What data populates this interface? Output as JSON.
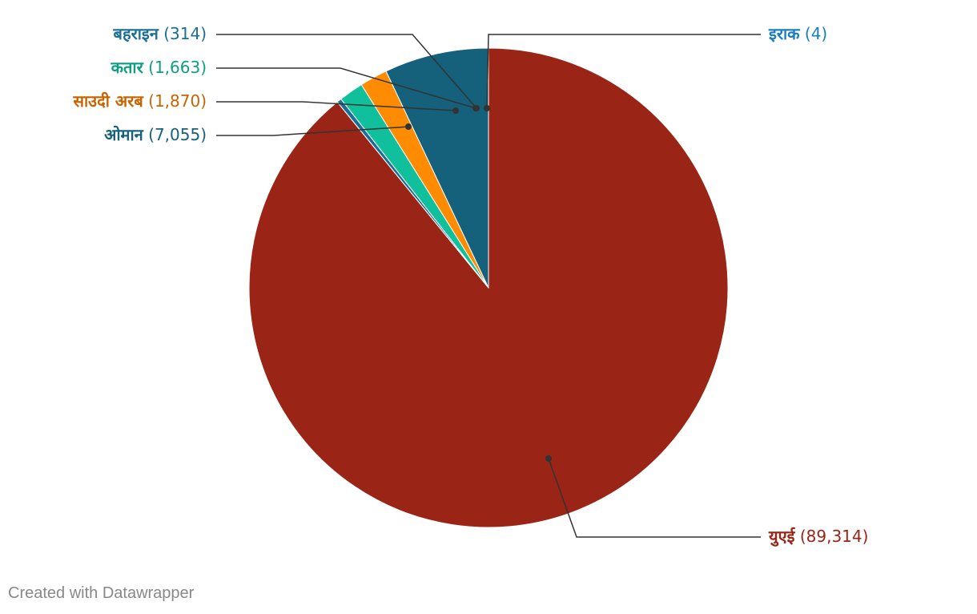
{
  "chart_data": {
    "type": "pie",
    "title": "",
    "categories": [
      "युएई",
      "इराक",
      "बहराइन",
      "कतार",
      "साउदी अरब",
      "ओमान"
    ],
    "values": [
      89314,
      4,
      314,
      1663,
      1870,
      7055
    ],
    "value_labels": [
      "89,314",
      "4",
      "314",
      "1,663",
      "1,870",
      "7,055"
    ],
    "colors": [
      "#9a2416",
      "#1a7dbf",
      "#1a6f96",
      "#10bf9c",
      "#ff8c00",
      "#15607b"
    ],
    "label_colors": [
      "#9a2416",
      "#1a7dbf",
      "#1a6f96",
      "#0f9e80",
      "#c76400",
      "#15607b"
    ],
    "start_angle_deg": 0,
    "direction": "clockwise",
    "legend": "none"
  },
  "footer": {
    "credit": "Created with Datawrapper"
  }
}
